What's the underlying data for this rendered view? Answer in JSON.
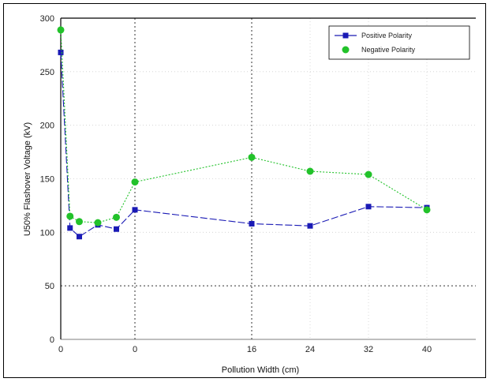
{
  "chart_data": {
    "type": "line",
    "title": "",
    "xlabel": "Pollution Width (cm)",
    "ylabel": "U50% Flashover Voltage (kV)",
    "ylim": [
      0,
      300
    ],
    "yticks": [
      0,
      50,
      100,
      150,
      200,
      250,
      300
    ],
    "xticks": [
      "0",
      "0",
      "16",
      "24",
      "32",
      "40"
    ],
    "grid": "dotted",
    "legend_position": "top-right",
    "series": [
      {
        "name": "Positive Polarity",
        "color": "#1a1ab5",
        "marker": "square",
        "line_style": "dashed",
        "points": [
          {
            "x": -8,
            "y": 268
          },
          {
            "x": -7,
            "y": 104
          },
          {
            "x": -6,
            "y": 96
          },
          {
            "x": -4,
            "y": 107
          },
          {
            "x": -2,
            "y": 103
          },
          {
            "x": 0,
            "y": 121
          },
          {
            "x": 16,
            "y": 108
          },
          {
            "x": 24,
            "y": 106
          },
          {
            "x": 32,
            "y": 124
          },
          {
            "x": 40,
            "y": 123
          }
        ]
      },
      {
        "name": "Negative Polarity",
        "color": "#22c22a",
        "marker": "circle",
        "line_style": "dotted",
        "points": [
          {
            "x": -8,
            "y": 289
          },
          {
            "x": -7,
            "y": 115
          },
          {
            "x": -6,
            "y": 110
          },
          {
            "x": -4,
            "y": 109
          },
          {
            "x": -2,
            "y": 114
          },
          {
            "x": 0,
            "y": 147
          },
          {
            "x": 16,
            "y": 170
          },
          {
            "x": 24,
            "y": 157
          },
          {
            "x": 32,
            "y": 154
          },
          {
            "x": 40,
            "y": 121
          }
        ]
      }
    ]
  }
}
